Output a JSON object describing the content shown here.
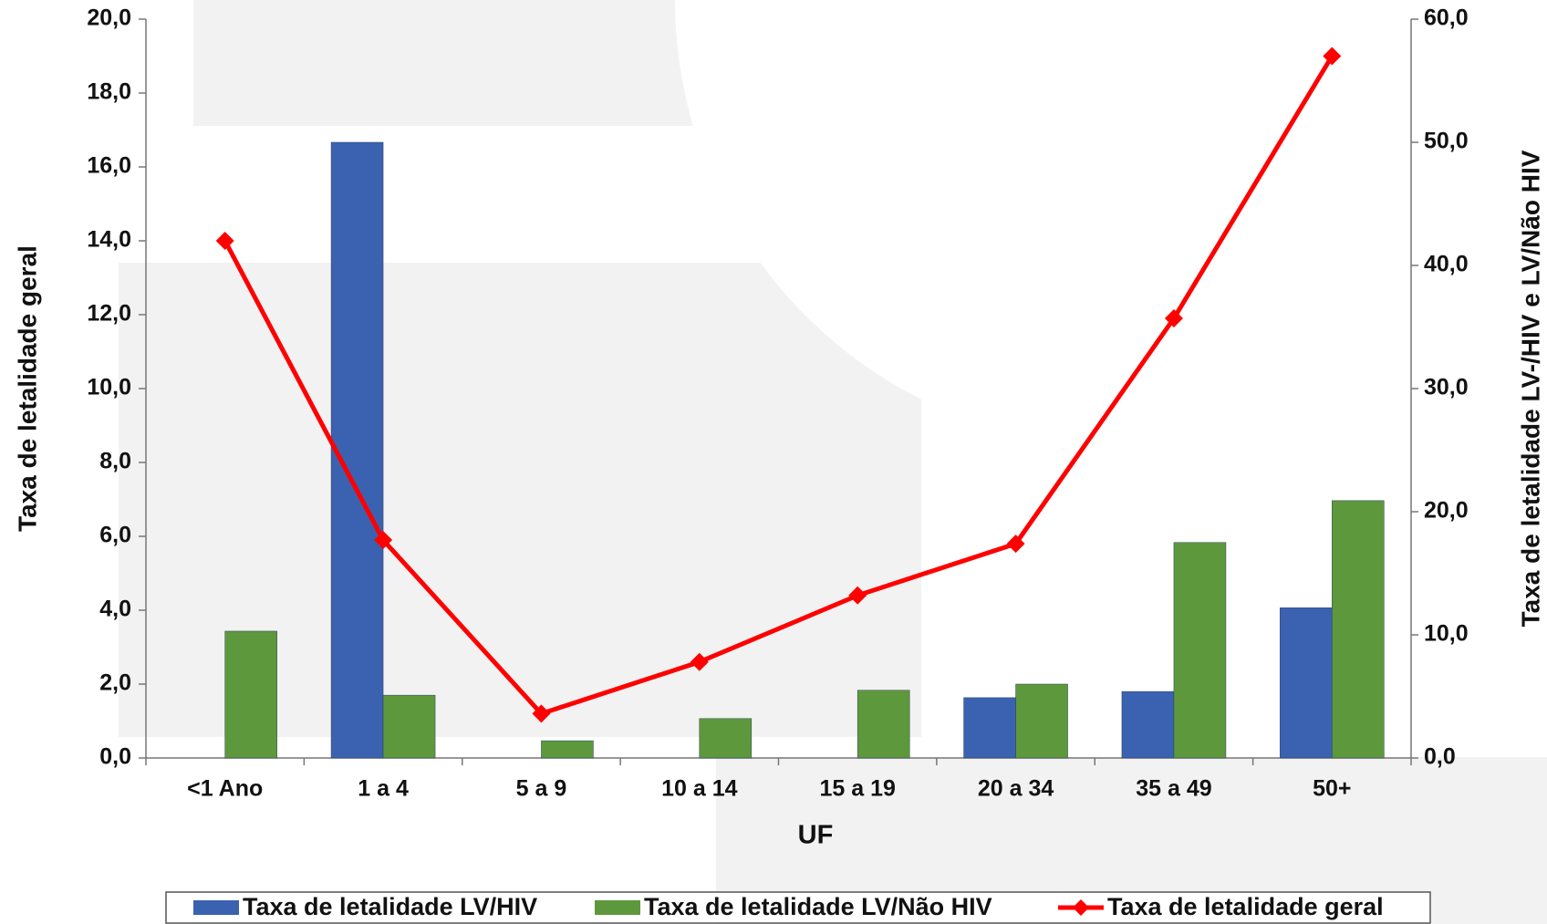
{
  "chart_data": {
    "type": "bar",
    "xlabel": "UF",
    "ylabel": "Taxa de letalidade geral",
    "y2label": "Taxa de letalidade LV-/HIV e LV/Não HIV",
    "categories": [
      "<1 Ano",
      "1 a 4",
      "5 a 9",
      "10 a 14",
      "15 a 19",
      "20 a 34",
      "35 a 49",
      "50+"
    ],
    "series": [
      {
        "name": "Taxa de letalidade LV/HIV",
        "type": "bar",
        "axis": "y2",
        "color": "#3a62b0",
        "values": [
          null,
          50.0,
          null,
          null,
          null,
          4.9,
          5.4,
          12.2
        ]
      },
      {
        "name": "Taxa de letalidade LV/Não HIV",
        "type": "bar",
        "axis": "y2",
        "color": "#5e983c",
        "values": [
          10.3,
          5.1,
          1.4,
          3.2,
          5.5,
          6.0,
          17.5,
          20.9
        ]
      },
      {
        "name": "Taxa de letalidade geral",
        "type": "line",
        "axis": "y",
        "color": "#ff0000",
        "values": [
          14.0,
          5.9,
          1.2,
          2.6,
          4.4,
          5.8,
          11.9,
          19.0
        ]
      }
    ],
    "ylim": [
      0,
      20
    ],
    "yticks": [
      {
        "value": 0,
        "label": "0,0"
      },
      {
        "value": 2,
        "label": "2,0"
      },
      {
        "value": 4,
        "label": "4,0"
      },
      {
        "value": 6,
        "label": "6,0"
      },
      {
        "value": 8,
        "label": "8,0"
      },
      {
        "value": 10,
        "label": "10,0"
      },
      {
        "value": 12,
        "label": "12,0"
      },
      {
        "value": 14,
        "label": "14,0"
      },
      {
        "value": 16,
        "label": "16,0"
      },
      {
        "value": 18,
        "label": "18,0"
      },
      {
        "value": 20,
        "label": "20,0"
      }
    ],
    "y2lim": [
      0,
      60
    ],
    "y2ticks": [
      {
        "value": 0,
        "label": "0,0"
      },
      {
        "value": 10,
        "label": "10,0"
      },
      {
        "value": 20,
        "label": "20,0"
      },
      {
        "value": 30,
        "label": "30,0"
      },
      {
        "value": 40,
        "label": "40,0"
      },
      {
        "value": 50,
        "label": "50,0"
      },
      {
        "value": 60,
        "label": "60,0"
      }
    ],
    "legend": "bottom"
  }
}
